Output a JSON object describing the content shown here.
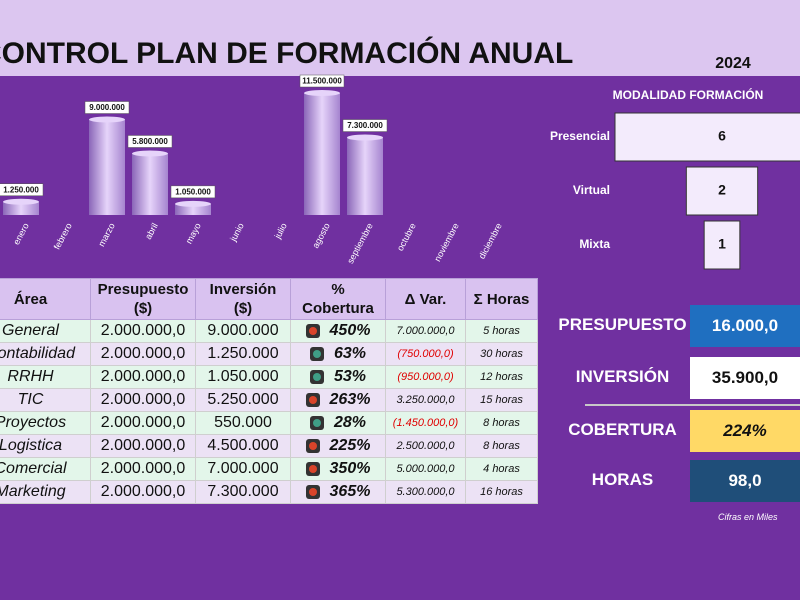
{
  "header": {
    "title": "CONTROL PLAN DE FORMACIÓN ANUAL",
    "year": "2024"
  },
  "chart_data": [
    {
      "type": "bar",
      "categories": [
        "enero",
        "febrero",
        "marzo",
        "abril",
        "mayo",
        "junio",
        "julio",
        "agosto",
        "septiembre",
        "octubre",
        "noviembre",
        "diciembre"
      ],
      "values": [
        1250000,
        null,
        9000000,
        5800000,
        1050000,
        null,
        null,
        11500000,
        7300000,
        null,
        null,
        null
      ],
      "value_labels": [
        "1.250.000",
        null,
        "9.000.000",
        "5.800.000",
        "1.050.000",
        null,
        null,
        "11.500.000",
        "7.300.000",
        null,
        null,
        null
      ],
      "color": "#e6d4fa"
    },
    {
      "type": "hbar",
      "title": "MODALIDAD FORMACIÓN",
      "categories": [
        "Presencial",
        "Virtual",
        "Mixta"
      ],
      "values": [
        6,
        2,
        1
      ],
      "color": "#f3ebfc"
    }
  ],
  "table": {
    "columns": [
      "Área",
      "Presupuesto ($)",
      "Inversión ($)",
      "% Cobertura",
      "Δ Var.",
      "Σ Horas"
    ],
    "rows": [
      [
        "General",
        "2.000.000,0",
        "9.000.000",
        "450%",
        "7.000.000,0",
        "5 horas"
      ],
      [
        "Contabilidad",
        "2.000.000,0",
        "1.250.000",
        "63%",
        "(750.000,0)",
        "30 horas"
      ],
      [
        "RRHH",
        "2.000.000,0",
        "1.050.000",
        "53%",
        "(950.000,0)",
        "12 horas"
      ],
      [
        "TIC",
        "2.000.000,0",
        "5.250.000",
        "263%",
        "3.250.000,0",
        "15 horas"
      ],
      [
        "Proyectos",
        "2.000.000,0",
        "550.000",
        "28%",
        "(1.450.000,0)",
        "8 horas"
      ],
      [
        "Logistica",
        "2.000.000,0",
        "4.500.000",
        "225%",
        "2.500.000,0",
        "8 horas"
      ],
      [
        "Comercial",
        "2.000.000,0",
        "7.000.000",
        "350%",
        "5.000.000,0",
        "4 horas"
      ],
      [
        "Marketing",
        "2.000.000,0",
        "7.300.000",
        "365%",
        "5.300.000,0",
        "16 horas"
      ]
    ],
    "status_colors": [
      "#d9442a",
      "#3f9e86",
      "#3f9e86",
      "#d9442a",
      "#3f9e86",
      "#d9442a",
      "#d9442a",
      "#d9442a"
    ],
    "negative_color": "#e00000"
  },
  "kpis": [
    {
      "label": "PRESUPUESTO",
      "value": "16.000,0"
    },
    {
      "label": "INVERSIÓN",
      "value": "35.900,0"
    },
    {
      "label": "COBERTURA",
      "value": "224%"
    },
    {
      "label": "HORAS",
      "value": "98,0"
    }
  ],
  "note": "Cifras en  Miles"
}
